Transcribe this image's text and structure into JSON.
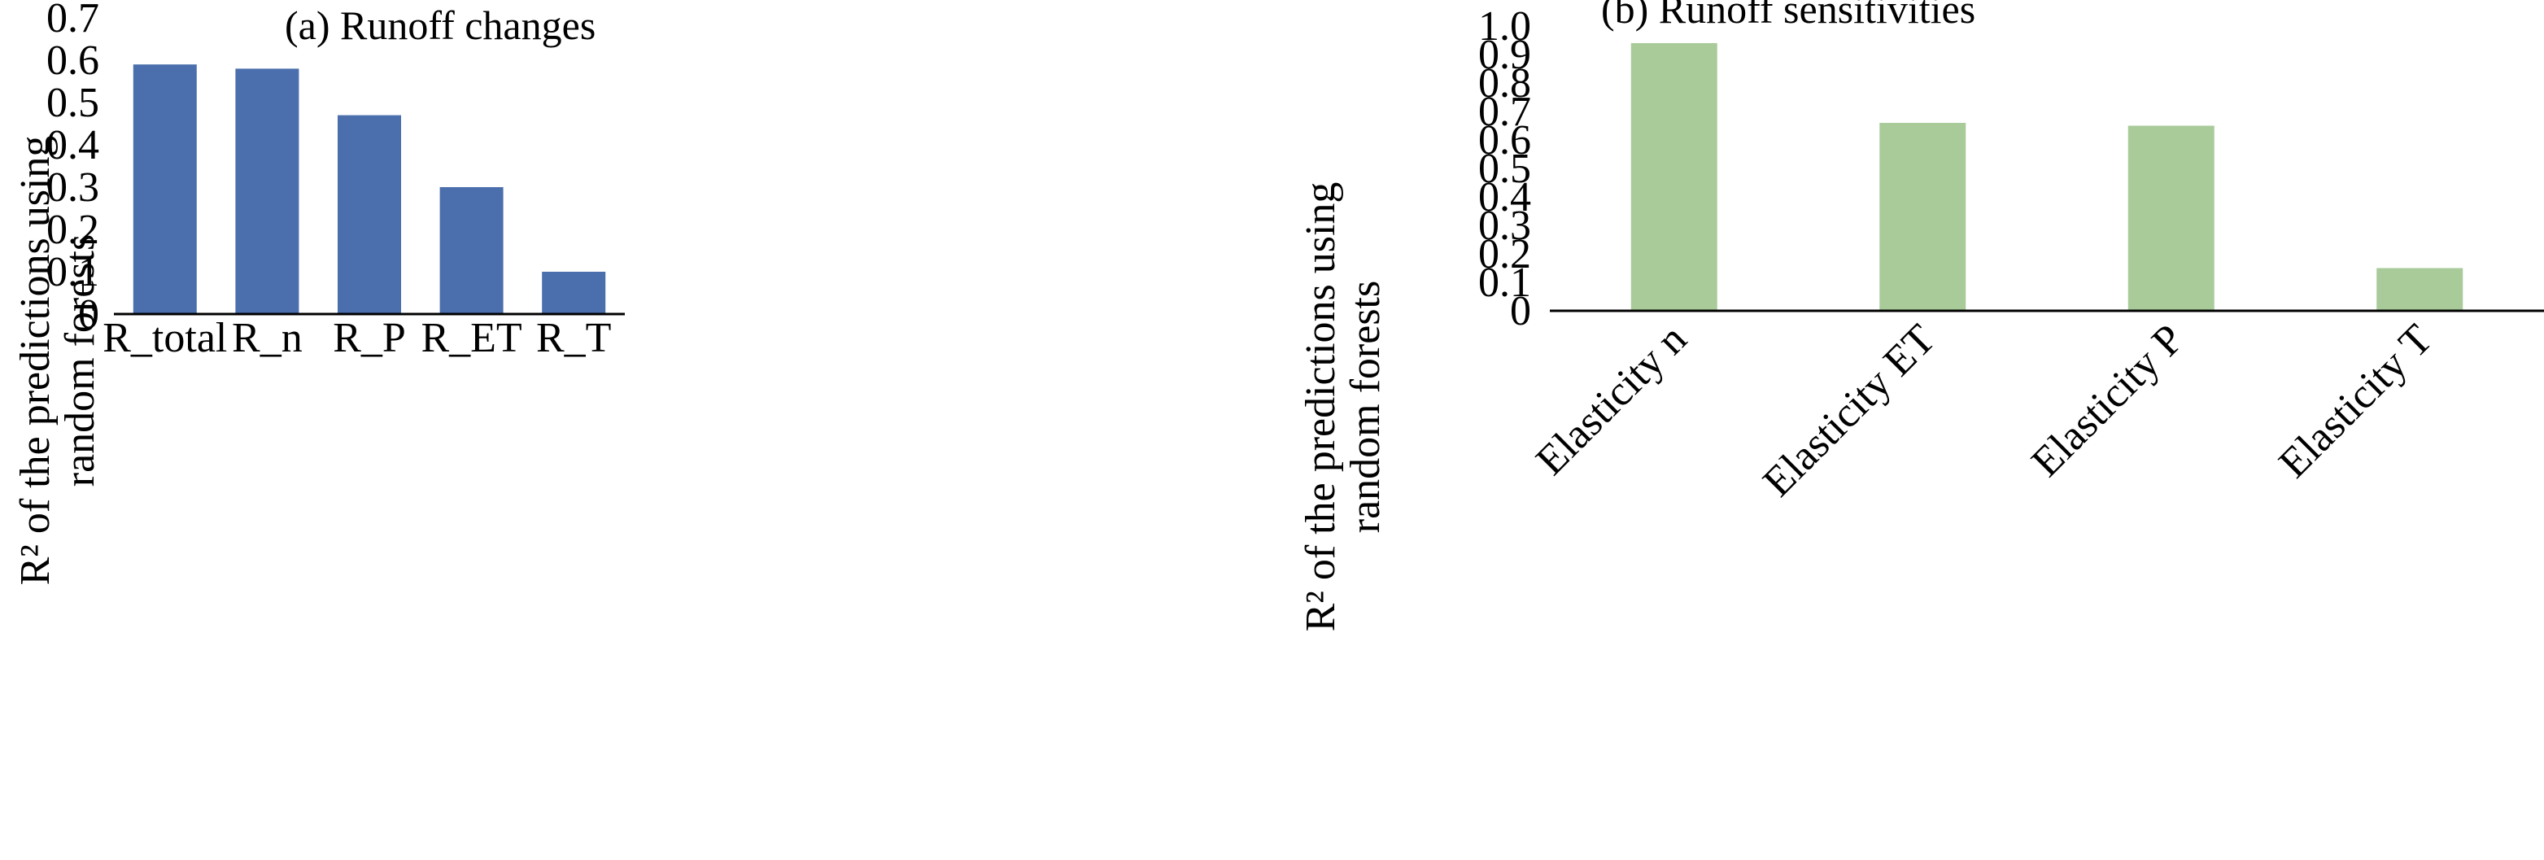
{
  "chart_data": [
    {
      "type": "bar",
      "title": "(a) Runoff changes",
      "ylabel_lines": [
        "R² of the predictions using",
        "random forests"
      ],
      "categories": [
        "R_total",
        "R_n",
        "R_P",
        "R_ET",
        "R_T"
      ],
      "values": [
        0.59,
        0.58,
        0.47,
        0.3,
        0.1
      ],
      "ylim": [
        0,
        0.7
      ],
      "yticks": [
        "0",
        "0.1",
        "0.2",
        "0.3",
        "0.4",
        "0.5",
        "0.6",
        "0.7"
      ],
      "color": "#4a6fac",
      "grid": false,
      "legend": "none"
    },
    {
      "type": "bar",
      "title": "(b) Runoff sensitivities",
      "ylabel_lines": [
        "R² of the predictions using",
        "random forests"
      ],
      "categories": [
        "Elasticity n",
        "Elasticity ET",
        "Elasticity P",
        "Elasticity T"
      ],
      "values": [
        0.94,
        0.66,
        0.65,
        0.15
      ],
      "ylim": [
        0,
        1.0
      ],
      "yticks": [
        "0",
        "0.1",
        "0.2",
        "0.3",
        "0.4",
        "0.5",
        "0.6",
        "0.7",
        "0.8",
        "0.9",
        "1.0"
      ],
      "color": "#a9cb9a",
      "grid": false,
      "legend": "none"
    }
  ]
}
